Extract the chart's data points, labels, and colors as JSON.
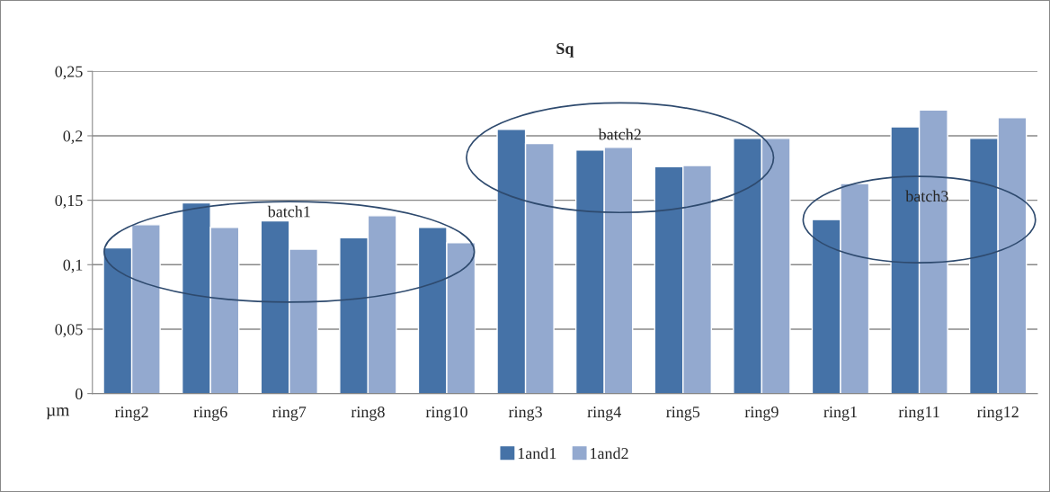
{
  "chart_data": {
    "type": "bar",
    "title": "Sq",
    "ylabel": "µm",
    "categories": [
      "ring2",
      "ring6",
      "ring7",
      "ring8",
      "ring10",
      "ring3",
      "ring4",
      "ring5",
      "ring9",
      "ring1",
      "ring11",
      "ring12"
    ],
    "series": [
      {
        "name": "1and1",
        "color": "#4572a7",
        "values": [
          0.113,
          0.148,
          0.134,
          0.121,
          0.129,
          0.205,
          0.189,
          0.176,
          0.198,
          0.135,
          0.207,
          0.198
        ]
      },
      {
        "name": "1and2",
        "color": "#93a9cf",
        "values": [
          0.131,
          0.129,
          0.112,
          0.138,
          0.117,
          0.194,
          0.191,
          0.177,
          0.198,
          0.163,
          0.22,
          0.214
        ]
      }
    ],
    "ylim": [
      0,
      0.25
    ],
    "yticks": [
      {
        "value": 0,
        "label": "0"
      },
      {
        "value": 0.05,
        "label": "0,05"
      },
      {
        "value": 0.1,
        "label": "0,1"
      },
      {
        "value": 0.15,
        "label": "0,15"
      },
      {
        "value": 0.2,
        "label": "0,2"
      },
      {
        "value": 0.25,
        "label": "0,25"
      }
    ],
    "grid": "y",
    "legend": "bottom",
    "annotations": [
      "batch1",
      "batch2",
      "batch3"
    ]
  }
}
